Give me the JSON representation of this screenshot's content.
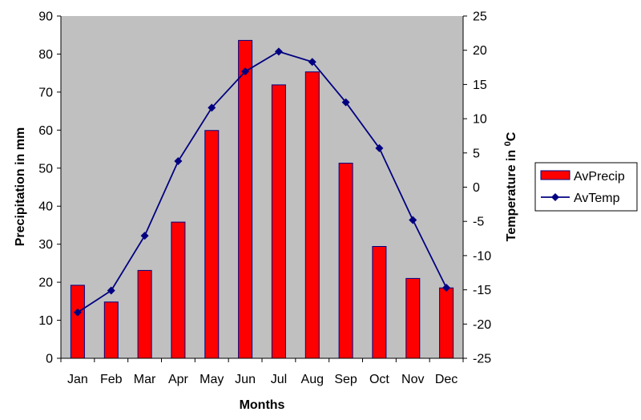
{
  "chart_data": {
    "type": "bar+line",
    "categories": [
      "Jan",
      "Feb",
      "Mar",
      "Apr",
      "May",
      "Jun",
      "Jul",
      "Aug",
      "Sep",
      "Oct",
      "Nov",
      "Dec"
    ],
    "series": [
      {
        "name": "AvPrecip",
        "type": "bar",
        "axis": "left",
        "color": "#ff0000",
        "values": [
          19.2,
          14.8,
          23.1,
          35.8,
          59.9,
          83.6,
          71.9,
          75.3,
          51.3,
          29.4,
          21.0,
          18.5
        ]
      },
      {
        "name": "AvTemp",
        "type": "line",
        "axis": "right",
        "color": "#000080",
        "values": [
          -18.3,
          -15.1,
          -7.1,
          3.8,
          11.6,
          16.9,
          19.8,
          18.3,
          12.4,
          5.7,
          -4.8,
          -14.7
        ]
      }
    ],
    "xlabel": "Months",
    "ylabel_left": "Precipitation in mm",
    "ylabel_right_prefix": "Temperature in ",
    "ylabel_right_sup": "0",
    "ylabel_right_suffix": "C",
    "ylim_left": [
      0,
      90
    ],
    "yticks_left": [
      0,
      10,
      20,
      30,
      40,
      50,
      60,
      70,
      80,
      90
    ],
    "ylim_right": [
      -25,
      25
    ],
    "yticks_right": [
      -25,
      -20,
      -15,
      -10,
      -5,
      0,
      5,
      10,
      15,
      20,
      25
    ],
    "plot_background": "#c0c0c0",
    "grid": false,
    "legend_position": "right"
  }
}
